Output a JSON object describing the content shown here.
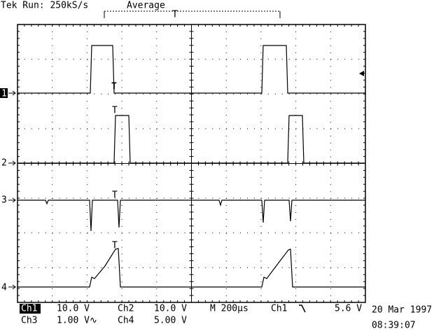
{
  "header": {
    "status": "Tek Run: 250kS/s",
    "mode": "Average"
  },
  "trigger_label": "T",
  "channels": {
    "markers": [
      "1",
      "2",
      "3",
      "4"
    ]
  },
  "status_bar": {
    "row1": {
      "ch1": "Ch1",
      "ch1_scale": "10.0 V",
      "ch2": "Ch2",
      "ch2_scale": "10.0 V",
      "timebase": "M 200µs",
      "trigger_source": "Ch1",
      "trigger_level": "5.6 V",
      "date": "20 Mar 1997"
    },
    "row2": {
      "ch3": "Ch3",
      "ch3_scale": "1.00 V∿",
      "ch4": "Ch4",
      "ch4_scale": "5.00 V",
      "time": "08:39:07"
    }
  }
}
